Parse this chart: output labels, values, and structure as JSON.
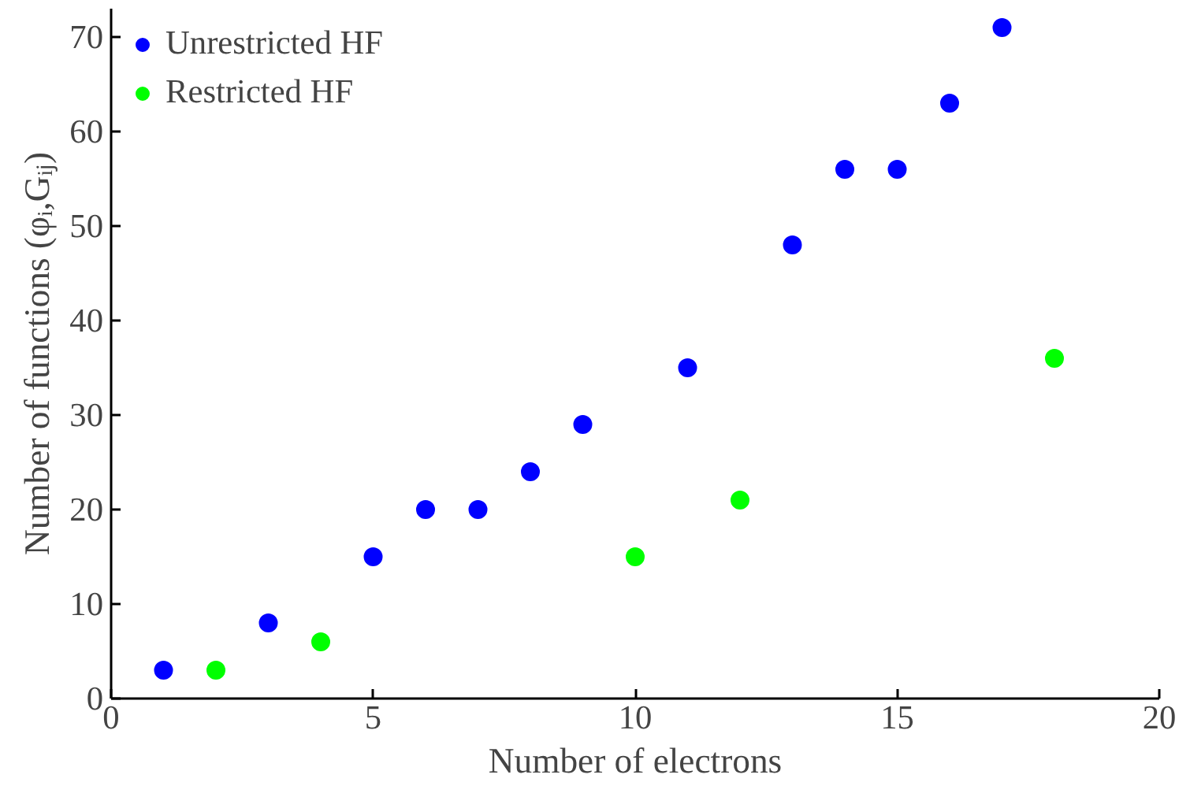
{
  "chart_data": {
    "type": "scatter",
    "xlabel": "Number of electrons",
    "ylabel": "Number of functions (φᵢ,Gᵢⱼ)",
    "xlim": [
      0,
      20
    ],
    "xticks": [
      0,
      5,
      10,
      15,
      20
    ],
    "ylim": [
      0,
      73
    ],
    "yticks": [
      0,
      10,
      20,
      30,
      40,
      50,
      60,
      70
    ],
    "grid": false,
    "legend": "top left",
    "marker": "circle",
    "series": [
      {
        "name": "Unrestricted HF",
        "color": "#0000ff",
        "x": [
          1,
          3,
          5,
          6,
          7,
          8,
          9,
          11,
          13,
          14,
          15,
          16,
          17
        ],
        "values": [
          3,
          8,
          15,
          20,
          20,
          24,
          29,
          35,
          48,
          56,
          56,
          63,
          71
        ]
      },
      {
        "name": "Restricted HF",
        "color": "#00ff00",
        "x": [
          2,
          4,
          10,
          12,
          18
        ],
        "values": [
          3,
          6,
          15,
          21,
          36
        ]
      }
    ]
  }
}
